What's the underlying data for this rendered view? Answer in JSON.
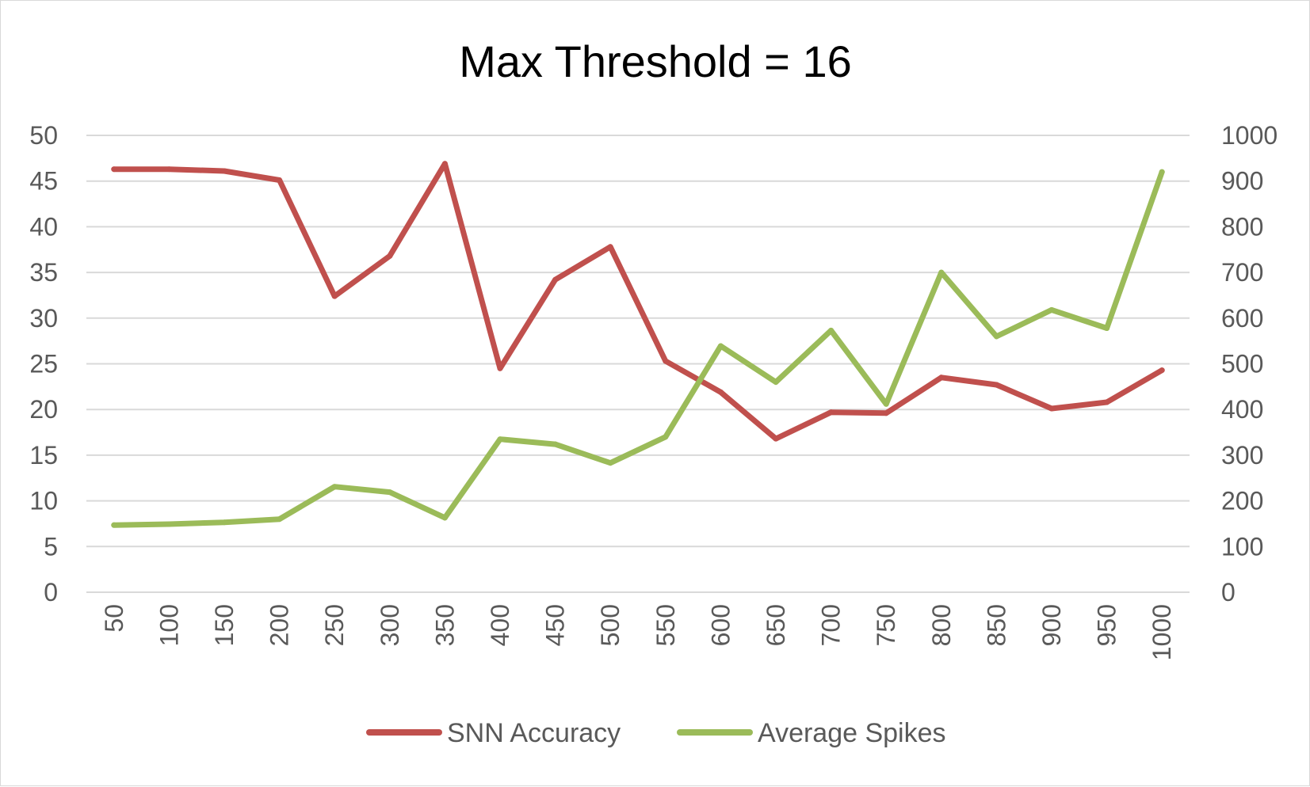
{
  "chart_data": {
    "type": "line",
    "title": "Max Threshold = 16",
    "xlabel": "",
    "ylabel": "",
    "y2label": "",
    "categories": [
      "50",
      "100",
      "150",
      "200",
      "250",
      "300",
      "350",
      "400",
      "450",
      "500",
      "550",
      "600",
      "650",
      "700",
      "750",
      "800",
      "850",
      "900",
      "950",
      "1000"
    ],
    "ylim": [
      0,
      50
    ],
    "y_ticks": [
      0,
      5,
      10,
      15,
      20,
      25,
      30,
      35,
      40,
      45,
      50
    ],
    "y2lim": [
      0,
      1000
    ],
    "y2_ticks": [
      0,
      100,
      200,
      300,
      400,
      500,
      600,
      700,
      800,
      900,
      1000
    ],
    "grid": true,
    "legend_position": "bottom",
    "series": [
      {
        "name": "SNN Accuracy",
        "axis": "left",
        "color": "#c0504d",
        "values": [
          46.3,
          46.3,
          46.1,
          45.1,
          32.4,
          36.8,
          46.9,
          24.5,
          34.2,
          37.8,
          25.3,
          21.9,
          16.8,
          19.7,
          19.6,
          23.5,
          22.7,
          20.1,
          20.8,
          24.3
        ]
      },
      {
        "name": "Average Spikes",
        "axis": "right",
        "color": "#9bbb59",
        "values": [
          147,
          149,
          153,
          160,
          231,
          219,
          163,
          335,
          324,
          283,
          340,
          539,
          460,
          573,
          412,
          700,
          560,
          618,
          578,
          920
        ]
      }
    ]
  }
}
